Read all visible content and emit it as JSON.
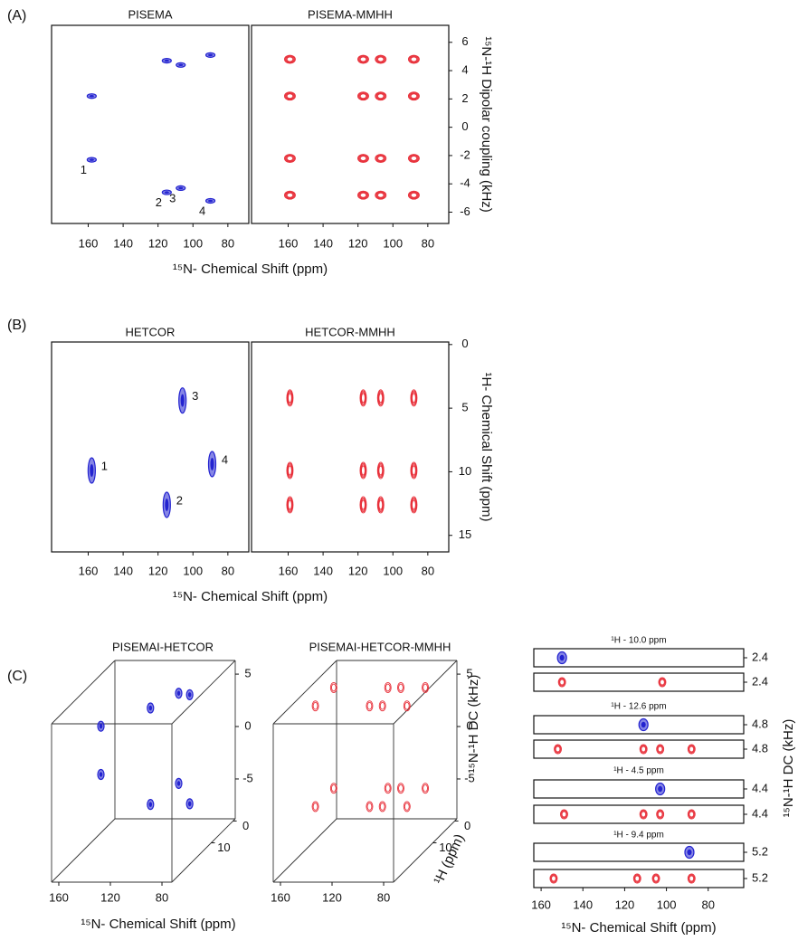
{
  "chart_data": [
    {
      "type": "scatter",
      "panel": "(A)",
      "xlabel": "¹⁵N- Chemical Shift (ppm)",
      "ylabel": "¹⁵N-¹H Dipolar coupling (kHz)",
      "xlim": [
        181,
        68
      ],
      "xticks": [
        160,
        140,
        120,
        100,
        80
      ],
      "ylim": [
        -6.8,
        7.2
      ],
      "yticks": [
        -6,
        -4,
        -2,
        0,
        2,
        4,
        6
      ],
      "plots": [
        {
          "title": "PISEMA",
          "color": "#2323d0",
          "x": [
            158,
            158,
            115,
            107,
            90,
            115,
            107,
            90
          ],
          "y": [
            2.2,
            -2.3,
            4.7,
            4.4,
            5.1,
            -4.6,
            -4.3,
            -5.2
          ],
          "point_labels": [
            null,
            "1",
            null,
            null,
            null,
            "2",
            "3",
            "4"
          ]
        },
        {
          "title": "PISEMA-MMHH",
          "color": "#e8303a",
          "x": [
            159,
            117,
            107,
            88,
            159,
            117,
            107,
            88,
            159,
            117,
            107,
            88,
            159,
            117,
            107,
            88
          ],
          "y": [
            4.8,
            4.8,
            4.8,
            4.8,
            2.2,
            2.2,
            2.2,
            2.2,
            -2.2,
            -2.2,
            -2.2,
            -2.2,
            -4.8,
            -4.8,
            -4.8,
            -4.8
          ]
        }
      ]
    },
    {
      "type": "scatter",
      "panel": "(B)",
      "xlabel": "¹⁵N- Chemical Shift (ppm)",
      "ylabel": "¹H- Chemical Shift (ppm)",
      "xlim": [
        181,
        68
      ],
      "xticks": [
        160,
        140,
        120,
        100,
        80
      ],
      "ylim": [
        16.3,
        -0.2
      ],
      "yticks": [
        0,
        5,
        10,
        15
      ],
      "plots": [
        {
          "title": "HETCOR",
          "color": "#2323d0",
          "x": [
            158,
            106,
            89,
            115
          ],
          "y": [
            9.9,
            4.4,
            9.4,
            12.6
          ],
          "point_labels": [
            "1",
            "3",
            "4",
            "2"
          ]
        },
        {
          "title": "HETCOR-MMHH",
          "color": "#e8303a",
          "x": [
            159,
            117,
            107,
            88,
            159,
            117,
            107,
            88,
            159,
            117,
            107,
            88
          ],
          "y": [
            4.2,
            4.2,
            4.2,
            4.2,
            9.9,
            9.9,
            9.9,
            9.9,
            12.6,
            12.6,
            12.6,
            12.6
          ]
        }
      ]
    },
    {
      "type": "scatter3d",
      "panel": "(C)",
      "xlabel": "¹⁵N- Chemical Shift (ppm)",
      "ylabel": "¹⁵N-¹H DC (kHz)",
      "zlabel": "¹H (ppm)",
      "xlim": [
        165.6,
        72.3
      ],
      "xticks": [
        160,
        120,
        80
      ],
      "ylim": [
        -8.8,
        6.3
      ],
      "yticks": [
        5,
        0,
        -5
      ],
      "zlim": [
        -1,
        28
      ],
      "zticks": [
        0,
        10
      ],
      "plots": [
        {
          "title": "PISEMAI-HETCOR",
          "color": "#2323d0",
          "x": [
            158,
            158,
            115,
            115,
            107,
            107,
            90,
            90
          ],
          "y": [
            2.3,
            -2.3,
            4.6,
            -4.6,
            4.3,
            -4.3,
            5.2,
            -5.2
          ],
          "z": [
            9.9,
            9.9,
            12.6,
            12.6,
            4.4,
            4.4,
            9.4,
            9.4
          ]
        },
        {
          "title": "PISEMAI-HETCOR-MMHH",
          "color": "#e8303a",
          "x": [
            159,
            117,
            107,
            88,
            159,
            117,
            107,
            88,
            159,
            117,
            107,
            88,
            159,
            117,
            107,
            88
          ],
          "y": [
            4.8,
            4.8,
            4.8,
            4.8,
            4.8,
            4.8,
            4.8,
            4.8,
            -4.8,
            -4.8,
            -4.8,
            -4.8,
            -4.8,
            -4.8,
            -4.8,
            -4.8
          ],
          "z": [
            4.2,
            4.2,
            4.2,
            4.2,
            12.6,
            12.6,
            12.6,
            12.6,
            4.2,
            4.2,
            4.2,
            4.2,
            12.6,
            12.6,
            12.6,
            12.6
          ]
        }
      ]
    },
    {
      "type": "strips",
      "xlabel": "¹⁵N- Chemical Shift (ppm)",
      "ylabel": "¹⁵N-¹H DC (kHz)",
      "xlim": [
        163.5,
        63
      ],
      "xticks": [
        160,
        140,
        120,
        100,
        80
      ],
      "strips": [
        {
          "title": "¹H - 10.0 ppm",
          "rows": [
            {
              "color": "#2323d0",
              "dc": 2.4,
              "x": [
                150
              ]
            },
            {
              "color": "#e8303a",
              "dc": 2.4,
              "x": [
                150,
                102
              ]
            }
          ]
        },
        {
          "title": "¹H - 12.6 ppm",
          "rows": [
            {
              "color": "#2323d0",
              "dc": 4.8,
              "x": [
                111
              ]
            },
            {
              "color": "#e8303a",
              "dc": 4.8,
              "x": [
                152,
                111,
                103,
                88
              ]
            }
          ]
        },
        {
          "title": "¹H - 4.5 ppm",
          "rows": [
            {
              "color": "#2323d0",
              "dc": 4.4,
              "x": [
                103
              ]
            },
            {
              "color": "#e8303a",
              "dc": 4.4,
              "x": [
                149,
                111,
                103,
                88
              ]
            }
          ]
        },
        {
          "title": "¹H - 9.4 ppm",
          "rows": [
            {
              "color": "#2323d0",
              "dc": 5.2,
              "x": [
                89
              ]
            },
            {
              "color": "#e8303a",
              "dc": 5.2,
              "x": [
                154,
                114,
                105,
                88
              ]
            }
          ]
        }
      ]
    }
  ]
}
